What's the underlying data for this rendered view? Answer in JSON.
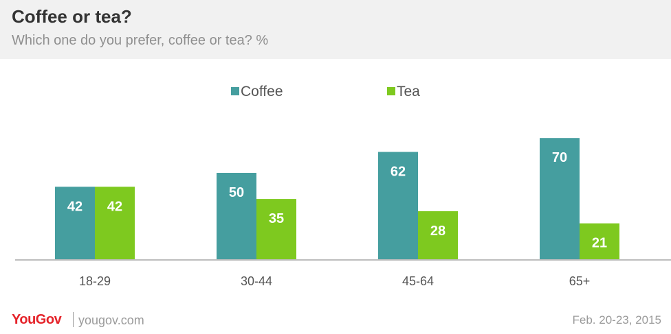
{
  "header": {
    "title": "Coffee or tea?",
    "subtitle": "Which one do you prefer, coffee or tea? %"
  },
  "footer": {
    "brand": "YouGov",
    "site": "yougov.com",
    "date": "Feb. 20-23, 2015"
  },
  "colors": {
    "coffee": "#459e9f",
    "tea": "#7ec91f",
    "axis": "#bdbdbd",
    "label": "#555555"
  },
  "chart_data": {
    "type": "bar",
    "categories": [
      "18-29",
      "30-44",
      "45-64",
      "65+"
    ],
    "series": [
      {
        "name": "Coffee",
        "values": [
          42,
          50,
          62,
          70
        ]
      },
      {
        "name": "Tea",
        "values": [
          42,
          35,
          28,
          21
        ]
      }
    ],
    "title": "Coffee or tea?",
    "subtitle": "Which one do you prefer, coffee or tea? %",
    "ylim": [
      0,
      70
    ],
    "legend_position": "top-center",
    "grid": false,
    "data_labels": true
  }
}
